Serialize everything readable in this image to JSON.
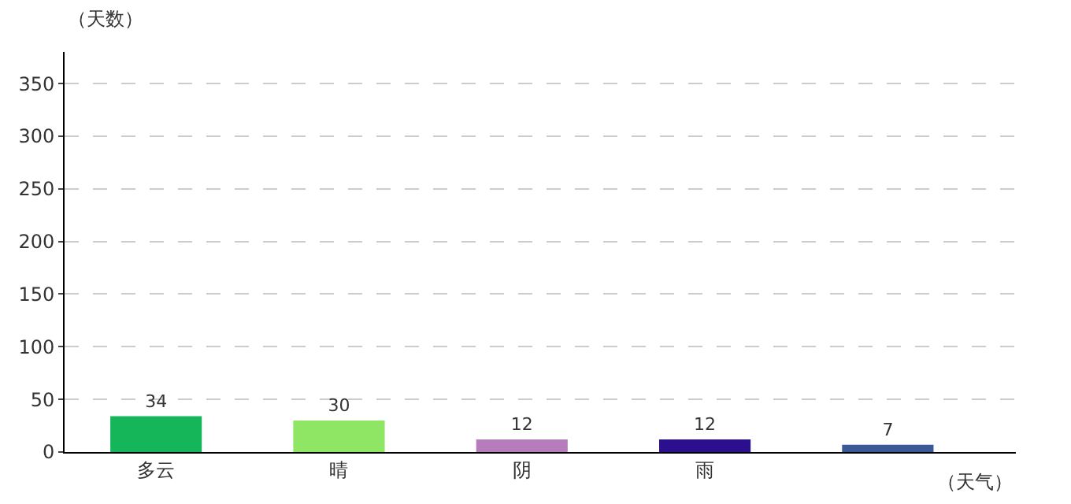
{
  "chart_data": {
    "type": "bar",
    "xlabel": "（天气）",
    "ylabel": "（天数）",
    "categories": [
      "多云",
      "晴",
      "阴",
      "雨",
      null
    ],
    "values": [
      34,
      30,
      12,
      12,
      7
    ],
    "colors": [
      "#15b65a",
      "#8fe665",
      "#b77cbb",
      "#2b0f8e",
      "#3a5a97"
    ],
    "ylim": [
      0,
      380
    ],
    "yticks": [
      0,
      50,
      100,
      150,
      200,
      250,
      300,
      350
    ],
    "grid": "y",
    "data_labels": true
  }
}
